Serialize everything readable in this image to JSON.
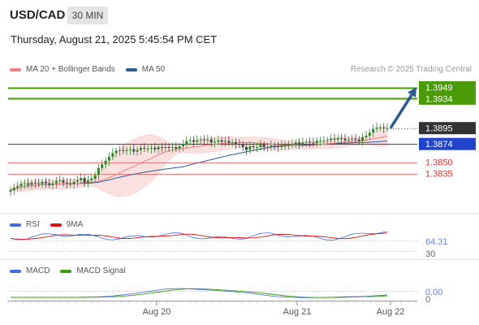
{
  "header": {
    "symbol": "USD/CAD",
    "timeframe": "30 MIN",
    "datetime": "Thursday, August 21, 2025 5:45:54 PM CET",
    "credit": "Research © 2025 Trading Central"
  },
  "legend_main": [
    {
      "label": "MA 20 + Bollinger Bands",
      "color": "#f08080"
    },
    {
      "label": "MA 50",
      "color": "#2c5a93"
    }
  ],
  "legend_rsi": [
    {
      "label": "RSI",
      "color": "#4169e1"
    },
    {
      "label": "9MA",
      "color": "#dd1111"
    }
  ],
  "legend_macd": [
    {
      "label": "MACD",
      "color": "#4169e1"
    },
    {
      "label": "MACD Signal",
      "color": "#3a9a10"
    }
  ],
  "colors": {
    "resistance": "#4a9a0a",
    "pivot": "#2244cc",
    "support": "#ee7777",
    "current": "#333333",
    "arrow": "#2c5a93",
    "up_candle": "#2a8a2a",
    "down_candle": "#444444",
    "band": "#fbe0e0"
  },
  "chart_data": [
    {
      "type": "candlestick",
      "x_ticks": [
        "Aug 20",
        "Aug 21",
        "Aug 22"
      ],
      "y_ticks": [
        "1.3949",
        "1.3934",
        "1.3895",
        "1.3874",
        "1.3850",
        "1.3835"
      ],
      "levels": [
        {
          "name": "resistance-2",
          "value": 1.3949,
          "label": "1.3949",
          "kind": "resistance"
        },
        {
          "name": "resistance-1",
          "value": 1.3934,
          "label": "1.3934",
          "kind": "resistance"
        },
        {
          "name": "pivot",
          "value": 1.3874,
          "label": "1.3874",
          "kind": "pivot"
        },
        {
          "name": "support-1",
          "value": 1.385,
          "label": "1.3850",
          "kind": "support"
        },
        {
          "name": "support-2",
          "value": 1.3835,
          "label": "1.3835",
          "kind": "support"
        }
      ],
      "current_price": {
        "value": 1.3895,
        "label": "1.3895"
      },
      "ylim": [
        1.38,
        1.396
      ],
      "close_values": [
        1.3813,
        1.3816,
        1.3818,
        1.3821,
        1.3822,
        1.382,
        1.3823,
        1.3822,
        1.3821,
        1.3824,
        1.3822,
        1.382,
        1.3822,
        1.3825,
        1.3826,
        1.3823,
        1.3822,
        1.3821,
        1.3824,
        1.3826,
        1.3829,
        1.3823,
        1.3826,
        1.3828,
        1.3833,
        1.3842,
        1.3847,
        1.3852,
        1.3857,
        1.3862,
        1.3865,
        1.3866,
        1.3865,
        1.3866,
        1.3867,
        1.3864,
        1.3866,
        1.3869,
        1.3868,
        1.3868,
        1.3869,
        1.3867,
        1.387,
        1.3869,
        1.387,
        1.3869,
        1.387,
        1.3868,
        1.3871,
        1.3874,
        1.3878,
        1.3879,
        1.3877,
        1.3879,
        1.388,
        1.3879,
        1.388,
        1.3876,
        1.3877,
        1.3879,
        1.3877,
        1.3878,
        1.3876,
        1.3876,
        1.3874,
        1.3873,
        1.387,
        1.3866,
        1.3871,
        1.387,
        1.387,
        1.3873,
        1.387,
        1.387,
        1.3872,
        1.3871,
        1.387,
        1.3872,
        1.3873,
        1.3873,
        1.3874,
        1.3876,
        1.3874,
        1.3876,
        1.3877,
        1.3876,
        1.3875,
        1.3878,
        1.3878,
        1.3878,
        1.3879,
        1.3881,
        1.388,
        1.3882,
        1.3881,
        1.3879,
        1.388,
        1.3881,
        1.388,
        1.3878,
        1.3883,
        1.3885,
        1.3889,
        1.3894,
        1.3896,
        1.3896,
        1.3895,
        1.3895
      ],
      "projection": {
        "from": 1.3895,
        "to": 1.3949
      }
    },
    {
      "type": "line",
      "name": "RSI",
      "series": [
        {
          "name": "RSI",
          "color": "#4169e1"
        },
        {
          "name": "9MA",
          "color": "#dd1111"
        }
      ],
      "y_ticks": [
        "64.31",
        "30"
      ],
      "current_value": "64.31"
    },
    {
      "type": "line",
      "name": "MACD",
      "series": [
        {
          "name": "MACD",
          "color": "#4169e1"
        },
        {
          "name": "MACD Signal",
          "color": "#3a9a10"
        }
      ],
      "y_ticks": [
        "0.00",
        "0"
      ],
      "current_value": "0.00"
    }
  ]
}
